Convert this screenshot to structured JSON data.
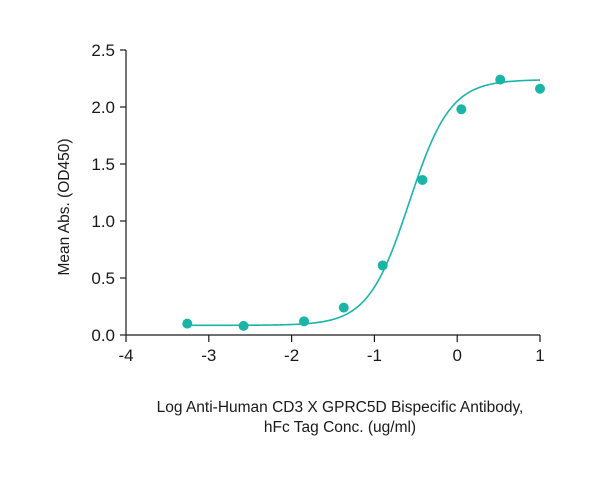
{
  "chart_data": {
    "type": "scatter",
    "xlabel_lines": [
      "Log Anti-Human CD3 X GPRC5D Bispecific Antibody,",
      "hFc Tag Conc. (ug/ml)"
    ],
    "ylabel": "Mean Abs. (OD450)",
    "xlim": [
      -4,
      1
    ],
    "ylim": [
      0,
      2.5
    ],
    "x_ticks": [
      -4,
      -3,
      -2,
      -1,
      0,
      1
    ],
    "x_tick_labels": [
      "-4",
      "-3",
      "-2",
      "-1",
      "0",
      "1"
    ],
    "y_ticks": [
      0,
      0.5,
      1.0,
      1.5,
      2.0,
      2.5
    ],
    "y_tick_labels": [
      "0.0",
      "0.5",
      "1.0",
      "1.5",
      "2.0",
      "2.5"
    ],
    "grid": false,
    "color": "#1bb5a8",
    "series": [
      {
        "x": [
          -3.26,
          -2.58,
          -1.85,
          -1.37,
          -0.9,
          -0.42,
          0.05,
          0.52,
          1.0
        ],
        "y": [
          0.1,
          0.08,
          0.12,
          0.24,
          0.61,
          1.36,
          1.98,
          2.24,
          2.16
        ]
      }
    ],
    "fit_curve": {
      "model": "4PL",
      "bottom": 0.085,
      "top": 2.24,
      "log_ec50": -0.58,
      "hill_slope": 1.75,
      "x_range": [
        -3.26,
        1.0
      ]
    }
  }
}
